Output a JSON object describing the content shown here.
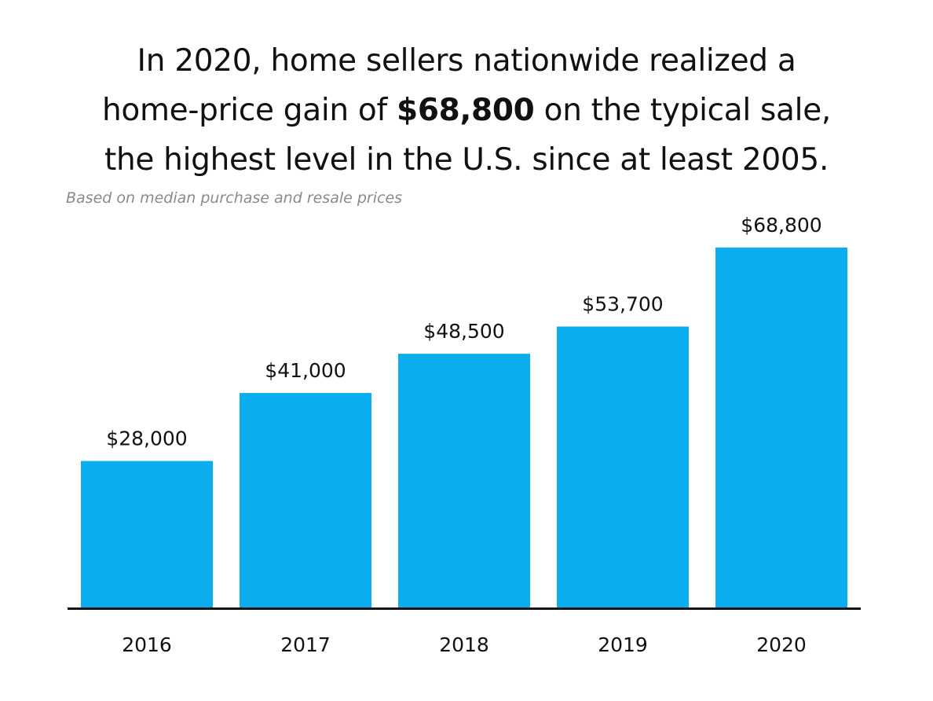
{
  "title": {
    "line1": "In 2020, home sellers nationwide realized a",
    "line2_pre": "home-price gain of ",
    "line2_bold": "$68,800",
    "line2_post": " on the typical sale,",
    "line3": "the highest level in the U.S. since at least 2005."
  },
  "subtitle": "Based on median purchase and resale prices",
  "colors": {
    "bar": "#0aaeee",
    "axis": "#111111",
    "text": "#111111",
    "subtitle": "#8a8a8a"
  },
  "chart_data": {
    "type": "bar",
    "title": "In 2020, home sellers nationwide realized a home-price gain of $68,800 on the typical sale, the highest level in the U.S. since at least 2005.",
    "subtitle": "Based on median purchase and resale prices",
    "xlabel": "",
    "ylabel": "",
    "categories": [
      "2016",
      "2017",
      "2018",
      "2019",
      "2020"
    ],
    "values": [
      28000,
      41000,
      48500,
      53700,
      68800
    ],
    "data_labels": [
      "$28,000",
      "$41,000",
      "$48,500",
      "$53,700",
      "$68,800"
    ],
    "ylim": [
      0,
      73000
    ],
    "grid": false,
    "legend": "none"
  }
}
